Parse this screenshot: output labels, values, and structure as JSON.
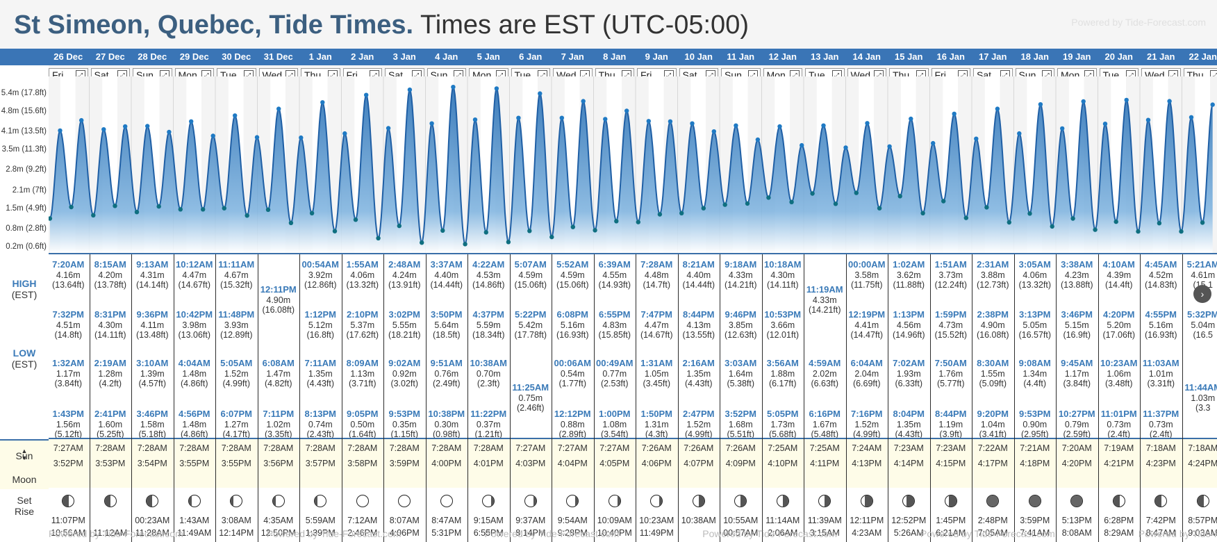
{
  "page": {
    "title_bold": "St Simeon, Quebec, Tide Times.",
    "title_rest": " Times are EST (UTC-05:00)",
    "powered_by": "Powered by Tide-Forecast.com"
  },
  "y_axis": [
    "5.4m (17.8ft)",
    "4.8m (15.6ft)",
    "4.1m (13.5ft)",
    "3.5m (11.3ft)",
    "2.8m (9.2ft)",
    "2.1m (7ft)",
    "1.5m (4.9ft)",
    "0.8m (2.8ft)",
    "0.2m (0.6ft)"
  ],
  "labels": {
    "high": "HIGH",
    "low": "LOW",
    "tz": "(EST)",
    "sun": "Sun",
    "moon": "Moon",
    "set": "Set",
    "rise": "Rise"
  },
  "days": [
    {
      "date": "26 Dec",
      "dow": "Fri",
      "high": [
        [
          "7:20AM",
          "4.16m",
          "(13.64ft)"
        ],
        [
          "7:32PM",
          "4.51m",
          "(14.8ft)"
        ]
      ],
      "low": [
        [
          "1:32AM",
          "1.17m",
          "(3.84ft)"
        ],
        [
          "1:43PM",
          "1.56m",
          "(5.12ft)"
        ]
      ],
      "sunrise": "7:27AM",
      "sunset": "3:52PM",
      "moon": "wg",
      "moonset": "11:07PM",
      "moonrise": "10:56AM"
    },
    {
      "date": "27 Dec",
      "dow": "Sat",
      "high": [
        [
          "8:15AM",
          "4.20m",
          "(13.78ft)"
        ],
        [
          "8:31PM",
          "4.30m",
          "(14.11ft)"
        ]
      ],
      "low": [
        [
          "2:19AM",
          "1.28m",
          "(4.2ft)"
        ],
        [
          "2:41PM",
          "1.60m",
          "(5.25ft)"
        ]
      ],
      "sunrise": "7:28AM",
      "sunset": "3:53PM",
      "moon": "fq",
      "moonset": "",
      "moonrise": "11:12AM"
    },
    {
      "date": "28 Dec",
      "dow": "Sun",
      "high": [
        [
          "9:13AM",
          "4.31m",
          "(14.14ft)"
        ],
        [
          "9:36PM",
          "4.11m",
          "(13.48ft)"
        ]
      ],
      "low": [
        [
          "3:10AM",
          "1.39m",
          "(4.57ft)"
        ],
        [
          "3:46PM",
          "1.58m",
          "(5.18ft)"
        ]
      ],
      "sunrise": "7:28AM",
      "sunset": "3:54PM",
      "moon": "fq",
      "moonset": "00:23AM",
      "moonrise": "11:28AM"
    },
    {
      "date": "29 Dec",
      "dow": "Mon",
      "high": [
        [
          "10:12AM",
          "4.47m",
          "(14.67ft)"
        ],
        [
          "10:42PM",
          "3.98m",
          "(13.06ft)"
        ]
      ],
      "low": [
        [
          "4:04AM",
          "1.48m",
          "(4.86ft)"
        ],
        [
          "4:56PM",
          "1.48m",
          "(4.86ft)"
        ]
      ],
      "sunrise": "7:28AM",
      "sunset": "3:55PM",
      "moon": "wx",
      "moonset": "1:43AM",
      "moonrise": "11:49AM"
    },
    {
      "date": "30 Dec",
      "dow": "Tue",
      "high": [
        [
          "11:11AM",
          "4.67m",
          "(15.32ft)"
        ],
        [
          "11:48PM",
          "3.93m",
          "(12.89ft)"
        ]
      ],
      "low": [
        [
          "5:05AM",
          "1.52m",
          "(4.99ft)"
        ],
        [
          "6:07PM",
          "1.27m",
          "(4.17ft)"
        ]
      ],
      "sunrise": "7:28AM",
      "sunset": "3:55PM",
      "moon": "wx",
      "moonset": "3:08AM",
      "moonrise": "12:14PM"
    },
    {
      "date": "31 Dec",
      "dow": "Wed",
      "high": [
        [
          "12:11PM",
          "4.90m",
          "(16.08ft)"
        ]
      ],
      "low": [
        [
          "6:08AM",
          "1.47m",
          "(4.82ft)"
        ],
        [
          "7:11PM",
          "1.02m",
          "(3.35ft)"
        ]
      ],
      "sunrise": "7:28AM",
      "sunset": "3:56PM",
      "moon": "wx",
      "moonset": "4:35AM",
      "moonrise": "12:50PM"
    },
    {
      "date": "1 Jan",
      "dow": "Thu",
      "high": [
        [
          "00:54AM",
          "3.92m",
          "(12.86ft)"
        ],
        [
          "1:12PM",
          "5.12m",
          "(16.8ft)"
        ]
      ],
      "low": [
        [
          "7:11AM",
          "1.35m",
          "(4.43ft)"
        ],
        [
          "8:13PM",
          "0.74m",
          "(2.43ft)"
        ]
      ],
      "sunrise": "7:28AM",
      "sunset": "3:57PM",
      "moon": "wx",
      "moonset": "5:59AM",
      "moonrise": "1:39PM"
    },
    {
      "date": "2 Jan",
      "dow": "Fri",
      "high": [
        [
          "1:55AM",
          "4.06m",
          "(13.32ft)"
        ],
        [
          "2:10PM",
          "5.37m",
          "(17.62ft)"
        ]
      ],
      "low": [
        [
          "8:09AM",
          "1.13m",
          "(3.71ft)"
        ],
        [
          "9:05PM",
          "0.50m",
          "(1.64ft)"
        ]
      ],
      "sunrise": "7:28AM",
      "sunset": "3:58PM",
      "moon": "full",
      "moonset": "7:12AM",
      "moonrise": "2:46PM"
    },
    {
      "date": "3 Jan",
      "dow": "Sat",
      "high": [
        [
          "2:48AM",
          "4.24m",
          "(13.91ft)"
        ],
        [
          "3:02PM",
          "5.55m",
          "(18.21ft)"
        ]
      ],
      "low": [
        [
          "9:02AM",
          "0.92m",
          "(3.02ft)"
        ],
        [
          "9:53PM",
          "0.35m",
          "(1.15ft)"
        ]
      ],
      "sunrise": "7:28AM",
      "sunset": "3:59PM",
      "moon": "full",
      "moonset": "8:07AM",
      "moonrise": "4:06PM"
    },
    {
      "date": "4 Jan",
      "dow": "Sun",
      "high": [
        [
          "3:37AM",
          "4.40m",
          "(14.44ft)"
        ],
        [
          "3:50PM",
          "5.64m",
          "(18.5ft)"
        ]
      ],
      "low": [
        [
          "9:51AM",
          "0.76m",
          "(2.49ft)"
        ],
        [
          "10:38PM",
          "0.30m",
          "(0.98ft)"
        ]
      ],
      "sunrise": "7:28AM",
      "sunset": "4:00PM",
      "moon": "full",
      "moonset": "8:47AM",
      "moonrise": "5:31PM"
    },
    {
      "date": "5 Jan",
      "dow": "Mon",
      "high": [
        [
          "4:22AM",
          "4.53m",
          "(14.86ft)"
        ],
        [
          "4:37PM",
          "5.59m",
          "(18.34ft)"
        ]
      ],
      "low": [
        [
          "10:38AM",
          "0.70m",
          "(2.3ft)"
        ],
        [
          "11:22PM",
          "0.37m",
          "(1.21ft)"
        ]
      ],
      "sunrise": "7:28AM",
      "sunset": "4:01PM",
      "moon": "wn",
      "moonset": "9:15AM",
      "moonrise": "6:55PM"
    },
    {
      "date": "6 Jan",
      "dow": "Tue",
      "high": [
        [
          "5:07AM",
          "4.59m",
          "(15.06ft)"
        ],
        [
          "5:22PM",
          "5.42m",
          "(17.78ft)"
        ]
      ],
      "low": [
        [
          "11:25AM",
          "0.75m",
          "(2.46ft)"
        ]
      ],
      "sunrise": "7:27AM",
      "sunset": "4:03PM",
      "moon": "wn",
      "moonset": "9:37AM",
      "moonrise": "8:14PM"
    },
    {
      "date": "7 Jan",
      "dow": "Wed",
      "high": [
        [
          "5:52AM",
          "4.59m",
          "(15.06ft)"
        ],
        [
          "6:08PM",
          "5.16m",
          "(16.93ft)"
        ]
      ],
      "low": [
        [
          "00:06AM",
          "0.54m",
          "(1.77ft)"
        ],
        [
          "12:12PM",
          "0.88m",
          "(2.89ft)"
        ]
      ],
      "sunrise": "7:27AM",
      "sunset": "4:04PM",
      "moon": "wn",
      "moonset": "9:54AM",
      "moonrise": "9:28PM"
    },
    {
      "date": "8 Jan",
      "dow": "Thu",
      "high": [
        [
          "6:39AM",
          "4.55m",
          "(14.93ft)"
        ],
        [
          "6:55PM",
          "4.83m",
          "(15.85ft)"
        ]
      ],
      "low": [
        [
          "00:49AM",
          "0.77m",
          "(2.53ft)"
        ],
        [
          "1:00PM",
          "1.08m",
          "(3.54ft)"
        ]
      ],
      "sunrise": "7:27AM",
      "sunset": "4:05PM",
      "moon": "wn",
      "moonset": "10:09AM",
      "moonrise": "10:40PM"
    },
    {
      "date": "9 Jan",
      "dow": "Fri",
      "high": [
        [
          "7:28AM",
          "4.48m",
          "(14.7ft)"
        ],
        [
          "7:47PM",
          "4.47m",
          "(14.67ft)"
        ]
      ],
      "low": [
        [
          "1:31AM",
          "1.05m",
          "(3.45ft)"
        ],
        [
          "1:50PM",
          "1.31m",
          "(4.3ft)"
        ]
      ],
      "sunrise": "7:26AM",
      "sunset": "4:06PM",
      "moon": "wn",
      "moonset": "10:23AM",
      "moonrise": "11:49PM"
    },
    {
      "date": "10 Jan",
      "dow": "Sat",
      "high": [
        [
          "8:21AM",
          "4.40m",
          "(14.44ft)"
        ],
        [
          "8:44PM",
          "4.13m",
          "(13.55ft)"
        ]
      ],
      "low": [
        [
          "2:16AM",
          "1.35m",
          "(4.43ft)"
        ],
        [
          "2:47PM",
          "1.52m",
          "(4.99ft)"
        ]
      ],
      "sunrise": "7:26AM",
      "sunset": "4:07PM",
      "moon": "lq",
      "moonset": "10:38AM",
      "moonrise": ""
    },
    {
      "date": "11 Jan",
      "dow": "Sun",
      "high": [
        [
          "9:18AM",
          "4.33m",
          "(14.21ft)"
        ],
        [
          "9:46PM",
          "3.85m",
          "(12.63ft)"
        ]
      ],
      "low": [
        [
          "3:03AM",
          "1.64m",
          "(5.38ft)"
        ],
        [
          "3:52PM",
          "1.68m",
          "(5.51ft)"
        ]
      ],
      "sunrise": "7:26AM",
      "sunset": "4:09PM",
      "moon": "lq",
      "moonset": "10:55AM",
      "moonrise": "00:57AM"
    },
    {
      "date": "12 Jan",
      "dow": "Mon",
      "high": [
        [
          "10:18AM",
          "4.30m",
          "(14.11ft)"
        ],
        [
          "10:53PM",
          "3.66m",
          "(12.01ft)"
        ]
      ],
      "low": [
        [
          "3:56AM",
          "1.88m",
          "(6.17ft)"
        ],
        [
          "5:05PM",
          "1.73m",
          "(5.68ft)"
        ]
      ],
      "sunrise": "7:25AM",
      "sunset": "4:10PM",
      "moon": "lq",
      "moonset": "11:14AM",
      "moonrise": "2:06AM"
    },
    {
      "date": "13 Jan",
      "dow": "Tue",
      "high": [
        [
          "11:19AM",
          "4.33m",
          "(14.21ft)"
        ]
      ],
      "low": [
        [
          "4:59AM",
          "2.02m",
          "(6.63ft)"
        ],
        [
          "6:16PM",
          "1.67m",
          "(5.48ft)"
        ]
      ],
      "sunrise": "7:25AM",
      "sunset": "4:11PM",
      "moon": "lq",
      "moonset": "11:39AM",
      "moonrise": "3:15AM"
    },
    {
      "date": "14 Jan",
      "dow": "Wed",
      "high": [
        [
          "00:00AM",
          "3.58m",
          "(11.75ft)"
        ],
        [
          "12:19PM",
          "4.41m",
          "(14.47ft)"
        ]
      ],
      "low": [
        [
          "6:04AM",
          "2.04m",
          "(6.69ft)"
        ],
        [
          "7:16PM",
          "1.52m",
          "(4.99ft)"
        ]
      ],
      "sunrise": "7:24AM",
      "sunset": "4:13PM",
      "moon": "wng",
      "moonset": "12:11PM",
      "moonrise": "4:23AM"
    },
    {
      "date": "15 Jan",
      "dow": "Thu",
      "high": [
        [
          "1:02AM",
          "3.62m",
          "(11.88ft)"
        ],
        [
          "1:13PM",
          "4.56m",
          "(14.96ft)"
        ]
      ],
      "low": [
        [
          "7:02AM",
          "1.93m",
          "(6.33ft)"
        ],
        [
          "8:04PM",
          "1.35m",
          "(4.43ft)"
        ]
      ],
      "sunrise": "7:23AM",
      "sunset": "4:14PM",
      "moon": "wng",
      "moonset": "12:52PM",
      "moonrise": "5:26AM"
    },
    {
      "date": "16 Jan",
      "dow": "Fri",
      "high": [
        [
          "1:51AM",
          "3.73m",
          "(12.24ft)"
        ],
        [
          "1:59PM",
          "4.73m",
          "(15.52ft)"
        ]
      ],
      "low": [
        [
          "7:50AM",
          "1.76m",
          "(5.77ft)"
        ],
        [
          "8:44PM",
          "1.19m",
          "(3.9ft)"
        ]
      ],
      "sunrise": "7:23AM",
      "sunset": "4:15PM",
      "moon": "wng",
      "moonset": "1:45PM",
      "moonrise": "6:21AM"
    },
    {
      "date": "17 Jan",
      "dow": "Sat",
      "high": [
        [
          "2:31AM",
          "3.88m",
          "(12.73ft)"
        ],
        [
          "2:38PM",
          "4.90m",
          "(16.08ft)"
        ]
      ],
      "low": [
        [
          "8:30AM",
          "1.55m",
          "(5.09ft)"
        ],
        [
          "9:20PM",
          "1.04m",
          "(3.41ft)"
        ]
      ],
      "sunrise": "7:22AM",
      "sunset": "4:17PM",
      "moon": "new",
      "moonset": "2:48PM",
      "moonrise": "7:05AM"
    },
    {
      "date": "18 Jan",
      "dow": "Sun",
      "high": [
        [
          "3:05AM",
          "4.06m",
          "(13.32ft)"
        ],
        [
          "3:13PM",
          "5.05m",
          "(16.57ft)"
        ]
      ],
      "low": [
        [
          "9:08AM",
          "1.34m",
          "(4.4ft)"
        ],
        [
          "9:53PM",
          "0.90m",
          "(2.95ft)"
        ]
      ],
      "sunrise": "7:21AM",
      "sunset": "4:18PM",
      "moon": "new",
      "moonset": "3:59PM",
      "moonrise": "7:41AM"
    },
    {
      "date": "19 Jan",
      "dow": "Mon",
      "high": [
        [
          "3:38AM",
          "4.23m",
          "(13.88ft)"
        ],
        [
          "3:46PM",
          "5.15m",
          "(16.9ft)"
        ]
      ],
      "low": [
        [
          "9:45AM",
          "1.17m",
          "(3.84ft)"
        ],
        [
          "10:27PM",
          "0.79m",
          "(2.59ft)"
        ]
      ],
      "sunrise": "7:20AM",
      "sunset": "4:20PM",
      "moon": "new",
      "moonset": "5:13PM",
      "moonrise": "8:08AM"
    },
    {
      "date": "20 Jan",
      "dow": "Tue",
      "high": [
        [
          "4:10AM",
          "4.39m",
          "(14.4ft)"
        ],
        [
          "4:20PM",
          "5.20m",
          "(17.06ft)"
        ]
      ],
      "low": [
        [
          "10:23AM",
          "1.06m",
          "(3.48ft)"
        ],
        [
          "11:01PM",
          "0.73m",
          "(2.4ft)"
        ]
      ],
      "sunrise": "7:19AM",
      "sunset": "4:21PM",
      "moon": "wxc",
      "moonset": "6:28PM",
      "moonrise": "8:29AM"
    },
    {
      "date": "21 Jan",
      "dow": "Wed",
      "high": [
        [
          "4:45AM",
          "4.52m",
          "(14.83ft)"
        ],
        [
          "4:55PM",
          "5.16m",
          "(16.93ft)"
        ]
      ],
      "low": [
        [
          "11:03AM",
          "1.01m",
          "(3.31ft)"
        ],
        [
          "11:37PM",
          "0.73m",
          "(2.4ft)"
        ]
      ],
      "sunrise": "7:18AM",
      "sunset": "4:23PM",
      "moon": "wxc",
      "moonset": "7:42PM",
      "moonrise": "8:47AM"
    },
    {
      "date": "22 Jan",
      "dow": "Thu",
      "high": [
        [
          "5:21AM",
          "4.61m",
          "(15.1"
        ],
        [
          "5:32PM",
          "5.04m",
          "(16.5"
        ]
      ],
      "low": [
        [
          "11:44AM",
          "1.03m",
          "(3.3"
        ]
      ],
      "sunrise": "7:18AM",
      "sunset": "4:24PM",
      "moon": "wxc",
      "moonset": "8:57PM",
      "moonrise": "9:03AM"
    }
  ]
}
